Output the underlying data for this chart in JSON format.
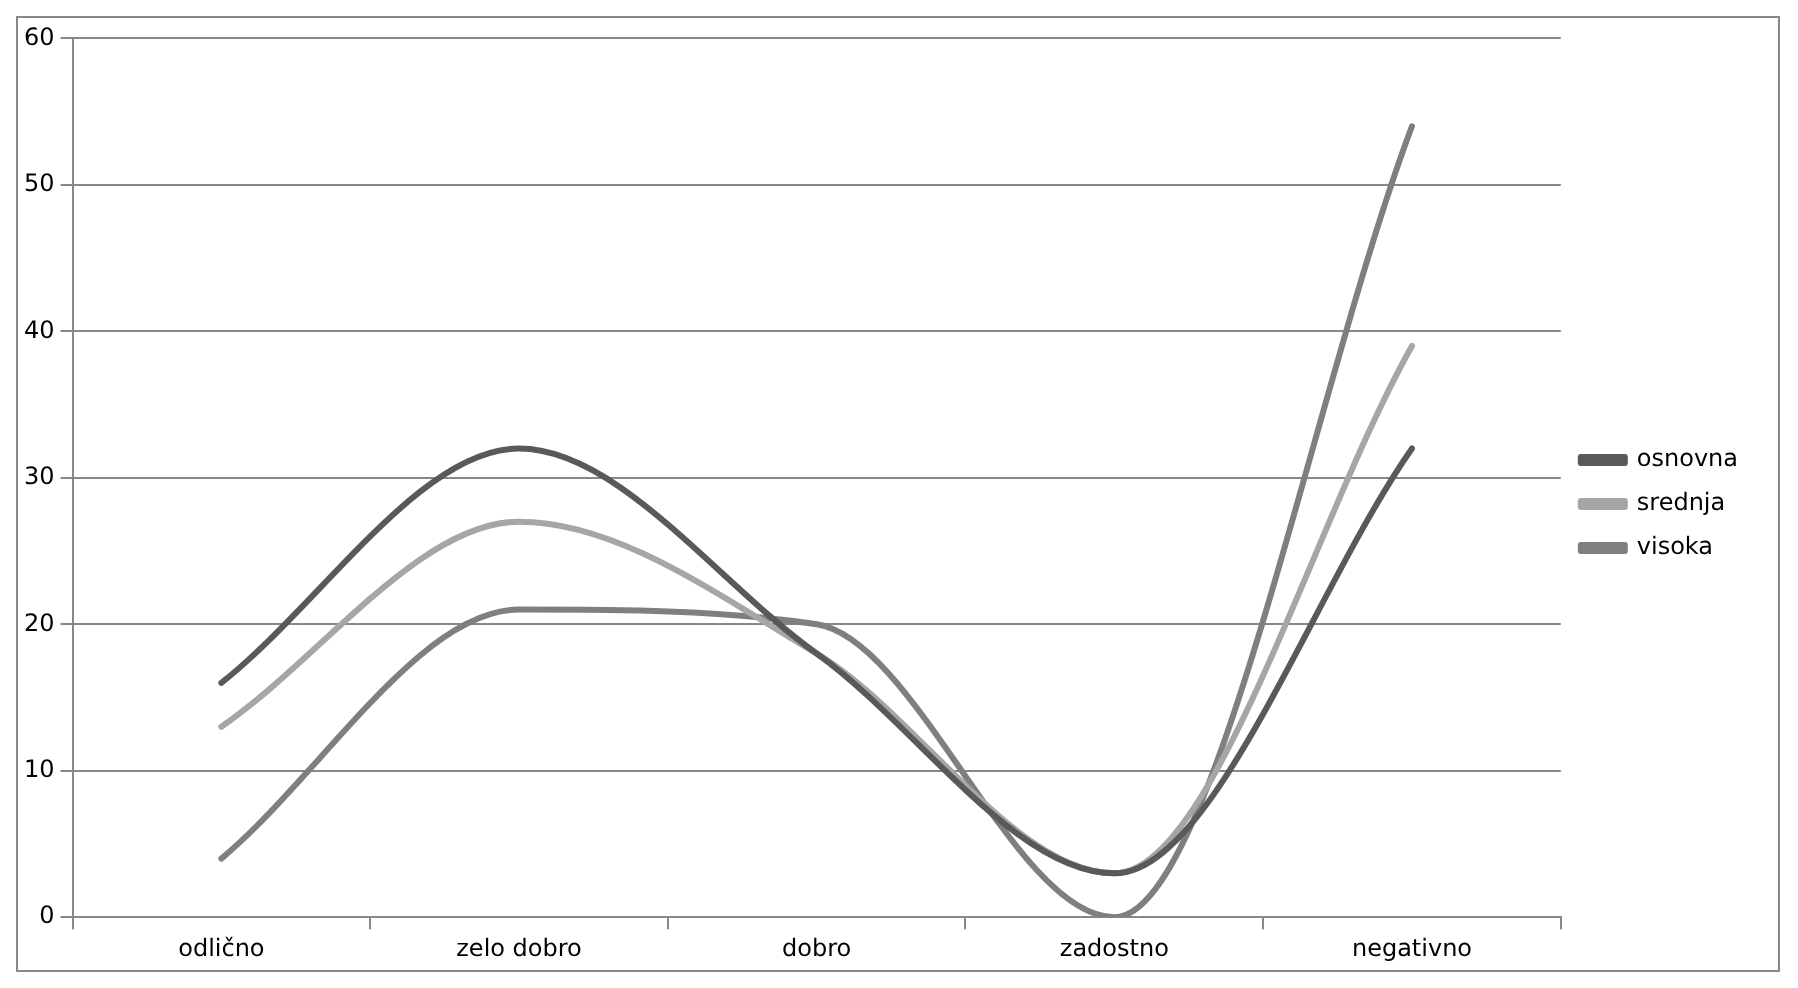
{
  "chart_data": {
    "type": "line",
    "categories": [
      "odlično",
      "zelo dobro",
      "dobro",
      "zadostno",
      "negativno"
    ],
    "series": [
      {
        "name": "osnovna",
        "color": "#595959",
        "values": [
          16,
          32,
          18,
          3,
          32
        ]
      },
      {
        "name": "srednja",
        "color": "#a6a6a6",
        "values": [
          13,
          27,
          18,
          3,
          39
        ]
      },
      {
        "name": "visoka",
        "color": "#7f7f7f",
        "values": [
          4,
          21,
          20,
          0,
          54
        ]
      }
    ],
    "ylim": [
      0,
      60
    ],
    "yticks": [
      0,
      10,
      20,
      30,
      40,
      50,
      60
    ],
    "grid": "y",
    "legend": "right",
    "marker": "none",
    "line_style": "solid"
  }
}
